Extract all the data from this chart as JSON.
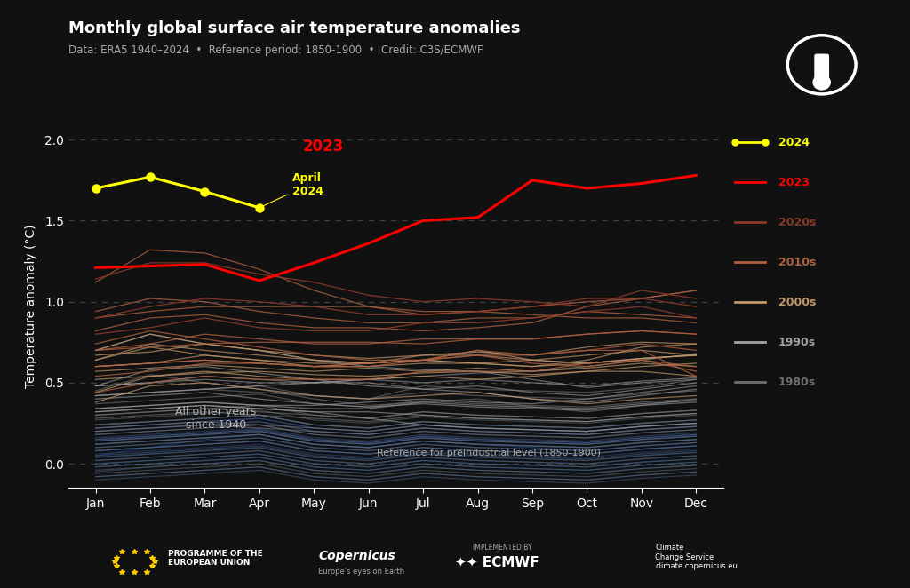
{
  "title": "Monthly global surface air temperature anomalies",
  "subtitle": "Data: ERA5 1940–2024  •  Reference period: 1850-1900  •  Credit: C3S/ECMWF",
  "ylabel": "Temperature anomaly (°C)",
  "months": [
    "Jan",
    "Feb",
    "Mar",
    "Apr",
    "May",
    "Jun",
    "Jul",
    "Aug",
    "Sep",
    "Oct",
    "Nov",
    "Dec"
  ],
  "bg_color": "#111111",
  "text_color": "#ffffff",
  "grid_color": "#555555",
  "ylim": [
    -0.15,
    2.1
  ],
  "dashed_lines": [
    0.0,
    0.5,
    1.0,
    1.5,
    2.0
  ],
  "year_2024": [
    1.7,
    1.77,
    1.68,
    1.58,
    null,
    null,
    null,
    null,
    null,
    null,
    null,
    null
  ],
  "year_2023": [
    1.21,
    1.22,
    1.23,
    1.13,
    1.24,
    1.36,
    1.5,
    1.52,
    1.75,
    1.7,
    1.73,
    1.78
  ],
  "yearly_data": {
    "1940": [
      0.05,
      0.1,
      0.15,
      0.18,
      0.12,
      0.1,
      0.14,
      0.12,
      0.1,
      0.08,
      0.11,
      0.13
    ],
    "1941": [
      0.18,
      0.2,
      0.22,
      0.24,
      0.18,
      0.16,
      0.2,
      0.18,
      0.17,
      0.16,
      0.19,
      0.21
    ],
    "1942": [
      0.1,
      0.12,
      0.14,
      0.16,
      0.1,
      0.08,
      0.12,
      0.1,
      0.09,
      0.08,
      0.11,
      0.13
    ],
    "1943": [
      0.15,
      0.17,
      0.19,
      0.21,
      0.15,
      0.13,
      0.17,
      0.15,
      0.14,
      0.13,
      0.16,
      0.18
    ],
    "1944": [
      0.22,
      0.24,
      0.26,
      0.28,
      0.22,
      0.2,
      0.24,
      0.22,
      0.21,
      0.2,
      0.23,
      0.25
    ],
    "1945": [
      0.14,
      0.16,
      0.18,
      0.2,
      0.14,
      0.12,
      0.16,
      0.14,
      0.13,
      0.12,
      0.15,
      0.17
    ],
    "1946": [
      0.06,
      0.08,
      0.1,
      0.12,
      0.06,
      0.04,
      0.08,
      0.06,
      0.05,
      0.04,
      0.07,
      0.09
    ],
    "1947": [
      0.08,
      0.1,
      0.12,
      0.14,
      0.08,
      0.06,
      0.1,
      0.08,
      0.07,
      0.06,
      0.09,
      0.11
    ],
    "1948": [
      0.04,
      0.06,
      0.08,
      0.1,
      0.04,
      0.02,
      0.06,
      0.04,
      0.03,
      0.02,
      0.05,
      0.07
    ],
    "1949": [
      0.02,
      0.04,
      0.06,
      0.08,
      0.02,
      0.0,
      0.04,
      0.02,
      0.01,
      0.0,
      0.03,
      0.05
    ],
    "1950": [
      -0.05,
      -0.02,
      0.0,
      0.02,
      -0.04,
      -0.06,
      -0.02,
      -0.04,
      -0.05,
      -0.06,
      -0.03,
      -0.01
    ],
    "1951": [
      0.12,
      0.14,
      0.16,
      0.18,
      0.12,
      0.1,
      0.14,
      0.12,
      0.11,
      0.1,
      0.13,
      0.15
    ],
    "1952": [
      0.16,
      0.18,
      0.2,
      0.22,
      0.16,
      0.14,
      0.18,
      0.16,
      0.15,
      0.14,
      0.17,
      0.19
    ],
    "1953": [
      0.2,
      0.22,
      0.24,
      0.26,
      0.2,
      0.18,
      0.22,
      0.2,
      0.19,
      0.18,
      0.21,
      0.23
    ],
    "1954": [
      0.0,
      0.02,
      0.04,
      0.06,
      0.0,
      -0.02,
      0.02,
      0.0,
      -0.01,
      -0.02,
      0.01,
      0.03
    ],
    "1955": [
      -0.02,
      0.0,
      0.02,
      0.04,
      -0.02,
      -0.04,
      0.0,
      -0.02,
      -0.03,
      -0.04,
      -0.01,
      0.01
    ],
    "1956": [
      -0.08,
      -0.06,
      -0.04,
      -0.02,
      -0.08,
      -0.1,
      -0.06,
      -0.08,
      -0.09,
      -0.1,
      -0.07,
      -0.05
    ],
    "1957": [
      0.2,
      0.22,
      0.24,
      0.26,
      0.2,
      0.18,
      0.22,
      0.2,
      0.19,
      0.18,
      0.21,
      0.23
    ],
    "1958": [
      0.22,
      0.24,
      0.26,
      0.28,
      0.22,
      0.2,
      0.24,
      0.22,
      0.21,
      0.2,
      0.23,
      0.25
    ],
    "1959": [
      0.14,
      0.16,
      0.18,
      0.2,
      0.14,
      0.12,
      0.16,
      0.14,
      0.13,
      0.12,
      0.15,
      0.17
    ],
    "1960": [
      0.05,
      0.07,
      0.09,
      0.11,
      0.05,
      0.03,
      0.07,
      0.05,
      0.04,
      0.03,
      0.06,
      0.08
    ],
    "1961": [
      0.15,
      0.17,
      0.19,
      0.21,
      0.15,
      0.13,
      0.17,
      0.15,
      0.14,
      0.13,
      0.16,
      0.18
    ],
    "1962": [
      0.12,
      0.14,
      0.16,
      0.18,
      0.12,
      0.1,
      0.14,
      0.12,
      0.11,
      0.1,
      0.13,
      0.15
    ],
    "1963": [
      0.08,
      0.1,
      0.12,
      0.14,
      0.08,
      0.06,
      0.1,
      0.08,
      0.07,
      0.06,
      0.09,
      0.11
    ],
    "1964": [
      -0.1,
      -0.08,
      -0.06,
      -0.04,
      -0.1,
      -0.12,
      -0.08,
      -0.1,
      -0.11,
      -0.12,
      -0.09,
      -0.07
    ],
    "1965": [
      -0.02,
      0.0,
      0.02,
      0.04,
      -0.02,
      -0.04,
      0.0,
      -0.02,
      -0.03,
      -0.04,
      -0.01,
      0.01
    ],
    "1966": [
      0.08,
      0.1,
      0.12,
      0.14,
      0.08,
      0.06,
      0.1,
      0.08,
      0.07,
      0.06,
      0.09,
      0.11
    ],
    "1967": [
      0.04,
      0.06,
      0.08,
      0.1,
      0.04,
      0.02,
      0.06,
      0.04,
      0.03,
      0.02,
      0.05,
      0.07
    ],
    "1968": [
      0.0,
      0.02,
      0.04,
      0.06,
      0.0,
      -0.02,
      0.02,
      0.0,
      -0.01,
      -0.02,
      0.01,
      0.03
    ],
    "1969": [
      0.24,
      0.26,
      0.28,
      0.3,
      0.24,
      0.22,
      0.26,
      0.24,
      0.23,
      0.22,
      0.25,
      0.27
    ],
    "1970": [
      0.12,
      0.14,
      0.16,
      0.18,
      0.12,
      0.1,
      0.14,
      0.12,
      0.11,
      0.1,
      0.13,
      0.15
    ],
    "1971": [
      -0.04,
      -0.02,
      0.0,
      0.02,
      -0.04,
      -0.06,
      -0.02,
      -0.04,
      -0.05,
      -0.06,
      -0.03,
      -0.01
    ],
    "1972": [
      0.1,
      0.12,
      0.14,
      0.16,
      0.1,
      0.08,
      0.12,
      0.1,
      0.09,
      0.08,
      0.11,
      0.13
    ],
    "1973": [
      0.24,
      0.26,
      0.28,
      0.3,
      0.24,
      0.22,
      0.26,
      0.24,
      0.23,
      0.22,
      0.25,
      0.27
    ],
    "1974": [
      -0.08,
      -0.06,
      -0.04,
      -0.02,
      -0.08,
      -0.1,
      -0.06,
      -0.08,
      -0.09,
      -0.1,
      -0.07,
      -0.05
    ],
    "1975": [
      0.02,
      0.04,
      0.06,
      0.08,
      0.02,
      0.0,
      0.04,
      0.02,
      0.01,
      0.0,
      0.03,
      0.05
    ],
    "1976": [
      -0.06,
      -0.04,
      -0.02,
      0.0,
      -0.06,
      -0.08,
      -0.04,
      -0.06,
      -0.07,
      -0.08,
      -0.05,
      -0.03
    ],
    "1977": [
      0.27,
      0.29,
      0.31,
      0.33,
      0.27,
      0.25,
      0.29,
      0.27,
      0.26,
      0.25,
      0.28,
      0.3
    ],
    "1978": [
      0.14,
      0.16,
      0.18,
      0.2,
      0.14,
      0.12,
      0.16,
      0.14,
      0.13,
      0.12,
      0.15,
      0.17
    ],
    "1979": [
      0.24,
      0.26,
      0.28,
      0.3,
      0.24,
      0.22,
      0.26,
      0.24,
      0.23,
      0.22,
      0.25,
      0.27
    ],
    "1980": [
      0.3,
      0.32,
      0.34,
      0.36,
      0.3,
      0.28,
      0.32,
      0.3,
      0.29,
      0.28,
      0.31,
      0.33
    ],
    "1981": [
      0.37,
      0.39,
      0.41,
      0.43,
      0.37,
      0.35,
      0.39,
      0.37,
      0.36,
      0.35,
      0.38,
      0.4
    ],
    "1982": [
      0.18,
      0.2,
      0.22,
      0.24,
      0.18,
      0.16,
      0.2,
      0.18,
      0.17,
      0.16,
      0.19,
      0.21
    ],
    "1983": [
      0.45,
      0.55,
      0.5,
      0.46,
      0.4,
      0.36,
      0.38,
      0.4,
      0.35,
      0.32,
      0.36,
      0.4
    ],
    "1984": [
      0.2,
      0.22,
      0.24,
      0.22,
      0.2,
      0.18,
      0.22,
      0.2,
      0.19,
      0.18,
      0.21,
      0.23
    ],
    "1985": [
      0.22,
      0.24,
      0.26,
      0.24,
      0.22,
      0.2,
      0.24,
      0.22,
      0.21,
      0.2,
      0.23,
      0.25
    ],
    "1986": [
      0.28,
      0.3,
      0.32,
      0.3,
      0.28,
      0.26,
      0.3,
      0.28,
      0.27,
      0.26,
      0.29,
      0.31
    ],
    "1987": [
      0.42,
      0.44,
      0.46,
      0.48,
      0.42,
      0.4,
      0.48,
      0.46,
      0.45,
      0.44,
      0.47,
      0.52
    ],
    "1988": [
      0.42,
      0.44,
      0.46,
      0.44,
      0.42,
      0.4,
      0.44,
      0.42,
      0.41,
      0.4,
      0.43,
      0.45
    ],
    "1989": [
      0.3,
      0.32,
      0.34,
      0.32,
      0.3,
      0.28,
      0.32,
      0.3,
      0.29,
      0.28,
      0.31,
      0.33
    ],
    "1990": [
      0.48,
      0.58,
      0.6,
      0.56,
      0.52,
      0.48,
      0.46,
      0.48,
      0.44,
      0.42,
      0.46,
      0.5
    ],
    "1991": [
      0.48,
      0.5,
      0.54,
      0.52,
      0.5,
      0.5,
      0.46,
      0.44,
      0.4,
      0.38,
      0.42,
      0.46
    ],
    "1992": [
      0.32,
      0.34,
      0.36,
      0.34,
      0.32,
      0.28,
      0.24,
      0.22,
      0.21,
      0.2,
      0.23,
      0.25
    ],
    "1993": [
      0.32,
      0.34,
      0.36,
      0.34,
      0.32,
      0.32,
      0.3,
      0.28,
      0.27,
      0.26,
      0.29,
      0.31
    ],
    "1994": [
      0.34,
      0.36,
      0.38,
      0.36,
      0.36,
      0.38,
      0.4,
      0.38,
      0.37,
      0.4,
      0.44,
      0.48
    ],
    "1995": [
      0.48,
      0.5,
      0.52,
      0.5,
      0.5,
      0.52,
      0.5,
      0.52,
      0.5,
      0.48,
      0.51,
      0.53
    ],
    "1996": [
      0.34,
      0.36,
      0.38,
      0.36,
      0.34,
      0.34,
      0.38,
      0.36,
      0.35,
      0.34,
      0.37,
      0.39
    ],
    "1997": [
      0.42,
      0.44,
      0.46,
      0.48,
      0.5,
      0.52,
      0.54,
      0.56,
      0.57,
      0.6,
      0.64,
      0.68
    ],
    "1998": [
      0.7,
      0.8,
      0.74,
      0.7,
      0.64,
      0.6,
      0.58,
      0.57,
      0.52,
      0.47,
      0.5,
      0.52
    ],
    "1999": [
      0.4,
      0.42,
      0.44,
      0.4,
      0.37,
      0.35,
      0.37,
      0.35,
      0.34,
      0.33,
      0.36,
      0.38
    ],
    "2000": [
      0.38,
      0.48,
      0.5,
      0.46,
      0.42,
      0.4,
      0.42,
      0.44,
      0.4,
      0.37,
      0.4,
      0.42
    ],
    "2001": [
      0.52,
      0.54,
      0.56,
      0.57,
      0.55,
      0.54,
      0.56,
      0.57,
      0.55,
      0.57,
      0.6,
      0.62
    ],
    "2002": [
      0.64,
      0.74,
      0.7,
      0.67,
      0.64,
      0.62,
      0.64,
      0.62,
      0.6,
      0.62,
      0.65,
      0.67
    ],
    "2003": [
      0.64,
      0.72,
      0.67,
      0.64,
      0.62,
      0.62,
      0.64,
      0.7,
      0.64,
      0.62,
      0.65,
      0.67
    ],
    "2004": [
      0.57,
      0.59,
      0.61,
      0.59,
      0.57,
      0.59,
      0.57,
      0.59,
      0.57,
      0.59,
      0.62,
      0.6
    ],
    "2005": [
      0.67,
      0.69,
      0.74,
      0.7,
      0.67,
      0.65,
      0.67,
      0.69,
      0.67,
      0.72,
      0.75,
      0.74
    ],
    "2006": [
      0.6,
      0.62,
      0.64,
      0.62,
      0.6,
      0.62,
      0.64,
      0.62,
      0.64,
      0.67,
      0.7,
      0.67
    ],
    "2007": [
      0.7,
      0.8,
      0.74,
      0.7,
      0.64,
      0.62,
      0.67,
      0.67,
      0.64,
      0.62,
      0.65,
      0.67
    ],
    "2008": [
      0.44,
      0.54,
      0.57,
      0.54,
      0.52,
      0.52,
      0.54,
      0.52,
      0.54,
      0.57,
      0.57,
      0.54
    ],
    "2009": [
      0.6,
      0.62,
      0.67,
      0.64,
      0.6,
      0.6,
      0.62,
      0.62,
      0.6,
      0.64,
      0.72,
      0.74
    ],
    "2010": [
      0.74,
      0.82,
      0.77,
      0.72,
      0.67,
      0.64,
      0.64,
      0.67,
      0.62,
      0.6,
      0.64,
      0.6
    ],
    "2011": [
      0.44,
      0.5,
      0.54,
      0.52,
      0.52,
      0.52,
      0.57,
      0.57,
      0.57,
      0.62,
      0.64,
      0.57
    ],
    "2012": [
      0.54,
      0.57,
      0.62,
      0.62,
      0.6,
      0.6,
      0.64,
      0.7,
      0.67,
      0.7,
      0.7,
      0.54
    ],
    "2013": [
      0.6,
      0.62,
      0.64,
      0.62,
      0.6,
      0.62,
      0.64,
      0.67,
      0.67,
      0.7,
      0.74,
      0.7
    ],
    "2014": [
      0.7,
      0.72,
      0.74,
      0.75,
      0.75,
      0.75,
      0.74,
      0.77,
      0.77,
      0.8,
      0.82,
      0.8
    ],
    "2015": [
      0.82,
      0.9,
      0.92,
      0.87,
      0.84,
      0.84,
      0.82,
      0.84,
      0.87,
      0.97,
      1.02,
      1.07
    ],
    "2016": [
      1.12,
      1.32,
      1.3,
      1.2,
      1.07,
      0.97,
      0.92,
      0.94,
      0.92,
      0.9,
      0.9,
      0.87
    ],
    "2017": [
      0.94,
      1.02,
      1.0,
      0.94,
      0.9,
      0.87,
      0.87,
      0.9,
      0.9,
      0.94,
      0.92,
      0.9
    ],
    "2018": [
      0.7,
      0.74,
      0.8,
      0.77,
      0.74,
      0.74,
      0.77,
      0.77,
      0.77,
      0.8,
      0.82,
      0.8
    ],
    "2019": [
      0.9,
      0.94,
      0.97,
      0.97,
      0.97,
      0.97,
      0.94,
      0.94,
      0.97,
      1.0,
      1.02,
      1.07
    ],
    "2020": [
      1.14,
      1.24,
      1.24,
      1.17,
      1.12,
      1.04,
      1.0,
      1.02,
      1.0,
      0.97,
      1.07,
      1.02
    ],
    "2021": [
      0.8,
      0.84,
      0.9,
      0.84,
      0.82,
      0.82,
      0.87,
      0.87,
      0.9,
      0.94,
      0.97,
      0.9
    ],
    "2022": [
      0.9,
      0.97,
      1.02,
      1.0,
      0.97,
      0.92,
      0.92,
      0.94,
      0.97,
      1.02,
      1.02,
      0.97
    ]
  },
  "legend_items": [
    {
      "label": "2024",
      "color": "#FFFF00",
      "marker": true
    },
    {
      "label": "2023",
      "color": "#FF0000",
      "marker": false
    },
    {
      "label": "2020s",
      "color": "#8B3A2A",
      "marker": false
    },
    {
      "label": "2010s",
      "color": "#B06040",
      "marker": false
    },
    {
      "label": "2000s",
      "color": "#C4976A",
      "marker": false
    },
    {
      "label": "1990s",
      "color": "#A0A0A0",
      "marker": false
    },
    {
      "label": "1980s",
      "color": "#707070",
      "marker": false
    }
  ]
}
